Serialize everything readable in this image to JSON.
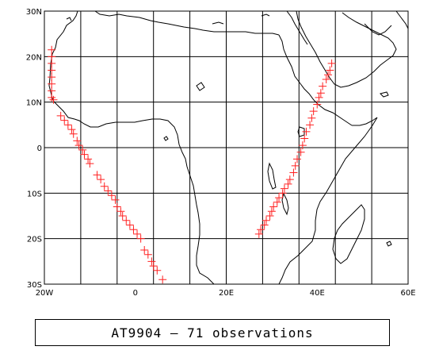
{
  "map": {
    "lon_range": [
      -20,
      80
    ],
    "lat_range": [
      -30,
      30
    ],
    "grid_step_deg": 10,
    "x_tick_labels": [
      "20W",
      "0",
      "20E",
      "40E",
      "60E"
    ],
    "y_tick_labels": [
      "30N",
      "20N",
      "10N",
      "0",
      "10S",
      "20S",
      "30S"
    ],
    "marker_color": "#ff2020",
    "coast_color": "#000000",
    "marker_shape": "plus-icon"
  },
  "track": {
    "points": [
      [
        -18,
        21.5
      ],
      [
        -18,
        20
      ],
      [
        -18,
        18.5
      ],
      [
        -18,
        17
      ],
      [
        -18,
        15.5
      ],
      [
        -18,
        14
      ],
      [
        -18,
        12.5
      ],
      [
        -18,
        11
      ],
      [
        -17.5,
        10.5
      ],
      [
        -15.5,
        7
      ],
      [
        -14.5,
        6
      ],
      [
        -13.5,
        5
      ],
      [
        -12.5,
        4
      ],
      [
        -12,
        3
      ],
      [
        -11,
        1.5
      ],
      [
        -10.5,
        0.5
      ],
      [
        -9.5,
        -0.5
      ],
      [
        -9,
        -1.5
      ],
      [
        -8,
        -2.5
      ],
      [
        -7.5,
        -3.5
      ],
      [
        -5.5,
        -6
      ],
      [
        -4.5,
        -7
      ],
      [
        -3.5,
        -8.5
      ],
      [
        -2.5,
        -9.5
      ],
      [
        -1.5,
        -10.5
      ],
      [
        -0.5,
        -11.5
      ],
      [
        0,
        -13
      ],
      [
        1,
        -14
      ],
      [
        1.5,
        -15
      ],
      [
        2.5,
        -16
      ],
      [
        3.5,
        -17
      ],
      [
        4.5,
        -18
      ],
      [
        5.5,
        -19
      ],
      [
        6.5,
        -20
      ],
      [
        7.5,
        -22.5
      ],
      [
        8.5,
        -23.5
      ],
      [
        9.5,
        -25
      ],
      [
        10,
        -26
      ],
      [
        11,
        -27
      ],
      [
        12.5,
        -29
      ],
      [
        39,
        -19
      ],
      [
        39.5,
        -18
      ],
      [
        40.5,
        -17
      ],
      [
        41,
        -16
      ],
      [
        42,
        -15
      ],
      [
        42.5,
        -14
      ],
      [
        43,
        -13
      ],
      [
        44,
        -12
      ],
      [
        44.5,
        -11
      ],
      [
        45.5,
        -10
      ],
      [
        46,
        -9
      ],
      [
        47,
        -8
      ],
      [
        47.5,
        -7
      ],
      [
        48.5,
        -5.5
      ],
      [
        49,
        -4
      ],
      [
        49.5,
        -2.5
      ],
      [
        50.5,
        -1
      ],
      [
        51,
        0.5
      ],
      [
        51.5,
        2
      ],
      [
        52,
        3.5
      ],
      [
        53,
        5
      ],
      [
        53.5,
        6.5
      ],
      [
        54,
        8
      ],
      [
        55,
        9.5
      ],
      [
        55.5,
        11
      ],
      [
        56,
        12
      ],
      [
        56.5,
        13.5
      ],
      [
        57.5,
        15
      ],
      [
        58,
        16
      ],
      [
        58.5,
        17
      ],
      [
        59,
        18.5
      ]
    ]
  },
  "legend": {
    "text": "AT9904 – 71 observations"
  }
}
